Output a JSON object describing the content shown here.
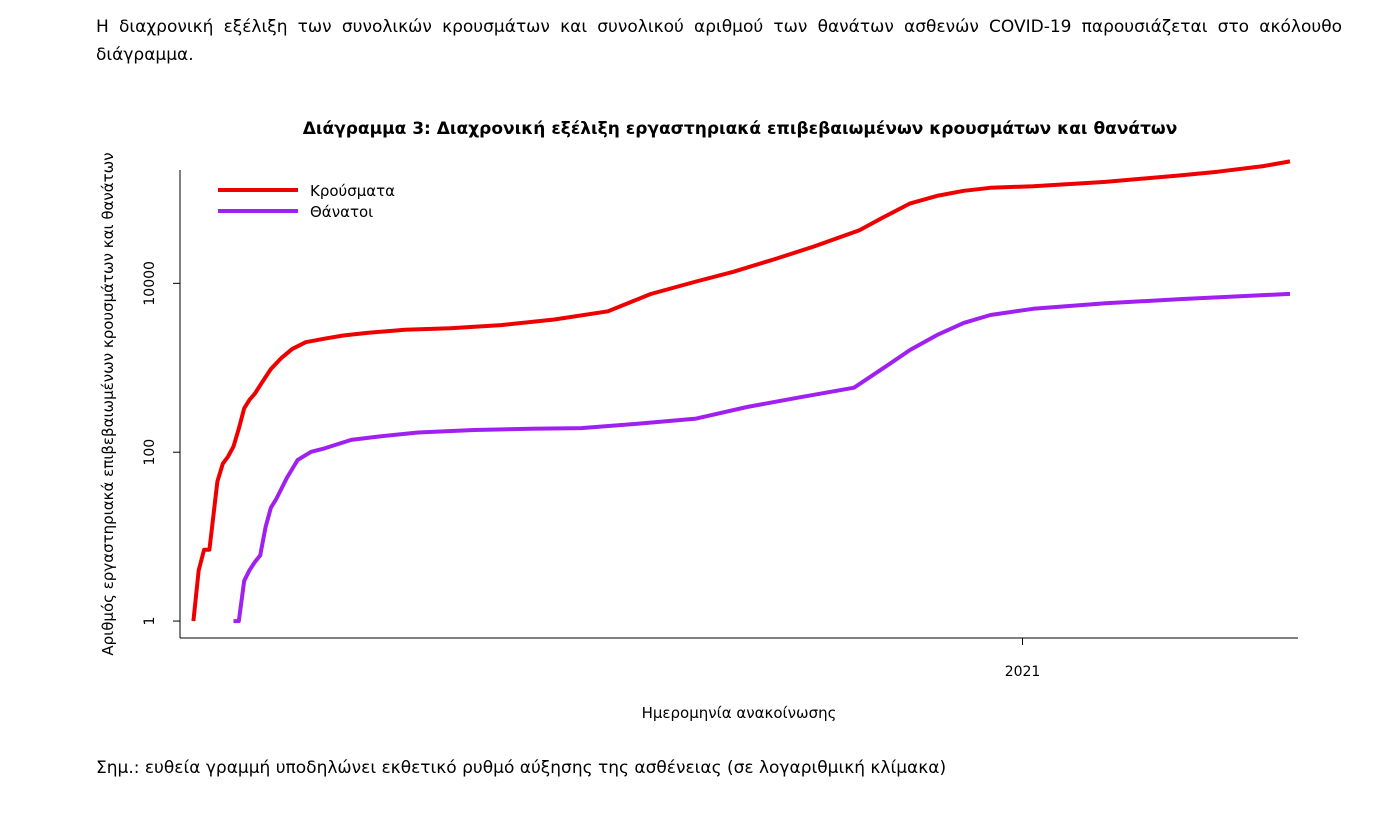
{
  "intro_text": "Η διαχρονική εξέλιξη των συνολικών κρουσμάτων και συνολικού αριθμού των θανάτων ασθενών COVID-19 παρουσιάζεται στο ακόλουθο διάγραμμα.",
  "note_text": "Σημ.: ευθεία γραμμή υποδηλώνει εκθετικό ρυθμό αύξησης της ασθένειας (σε λογαριθμική κλίμακα)",
  "chart_data": {
    "type": "line",
    "title": "Διάγραμμα 3: Διαχρονική εξέλιξη εργαστηριακά επιβεβαιωμένων κρουσμάτων και θανάτων",
    "xlabel": "Ημερομηνία ανακοίνωσης",
    "ylabel": "Αριθμός εργαστηριακά επιβεβαιωμένων κρουσμάτων και θανάτων",
    "y_scale": "log",
    "yticks": [
      1,
      100,
      10000
    ],
    "ytick_labels": [
      "1",
      "100",
      "10000"
    ],
    "xticks": [
      "2021-01-01"
    ],
    "xtick_labels": [
      "2021"
    ],
    "xlim": [
      "2020-02-21",
      "2021-04-14"
    ],
    "ylim": [
      0.63,
      220000
    ],
    "legend_position": "top-left",
    "grid": false,
    "series": [
      {
        "name": "Κρούσματα",
        "color": "#ee0000",
        "x": [
          "2020-02-26",
          "2020-02-28",
          "2020-03-01",
          "2020-03-03",
          "2020-03-06",
          "2020-03-08",
          "2020-03-10",
          "2020-03-12",
          "2020-03-14",
          "2020-03-16",
          "2020-03-18",
          "2020-03-20",
          "2020-03-23",
          "2020-03-26",
          "2020-03-30",
          "2020-04-03",
          "2020-04-08",
          "2020-04-15",
          "2020-04-22",
          "2020-05-01",
          "2020-05-15",
          "2020-06-01",
          "2020-06-20",
          "2020-07-10",
          "2020-07-30",
          "2020-08-15",
          "2020-09-01",
          "2020-09-15",
          "2020-10-01",
          "2020-10-15",
          "2020-11-01",
          "2020-11-10",
          "2020-11-20",
          "2020-11-30",
          "2020-12-10",
          "2020-12-20",
          "2021-01-05",
          "2021-02-01",
          "2021-03-01",
          "2021-03-15",
          "2021-04-01",
          "2021-04-11"
        ],
        "values": [
          1,
          4,
          7,
          7,
          45,
          73,
          89,
          117,
          190,
          331,
          418,
          495,
          695,
          966,
          1314,
          1673,
          2011,
          2207,
          2408,
          2591,
          2819,
          2937,
          3203,
          3732,
          4662,
          7472,
          10524,
          13730,
          19613,
          27334,
          42550,
          60570,
          88510,
          108640,
          124802,
          135456,
          141453,
          159000,
          190000,
          210000,
          245000,
          278000
        ]
      },
      {
        "name": "Θάνατοι",
        "color": "#a020f0",
        "x": [
          "2020-03-12",
          "2020-03-14",
          "2020-03-16",
          "2020-03-18",
          "2020-03-20",
          "2020-03-22",
          "2020-03-24",
          "2020-03-26",
          "2020-03-28",
          "2020-04-01",
          "2020-04-05",
          "2020-04-10",
          "2020-04-15",
          "2020-04-25",
          "2020-05-05",
          "2020-05-20",
          "2020-06-10",
          "2020-07-01",
          "2020-07-20",
          "2020-08-10",
          "2020-09-01",
          "2020-09-20",
          "2020-10-10",
          "2020-10-30",
          "2020-11-10",
          "2020-11-20",
          "2020-11-30",
          "2020-12-10",
          "2020-12-20",
          "2021-01-05",
          "2021-02-01",
          "2021-03-01",
          "2021-04-11"
        ],
        "values": [
          1,
          1,
          3,
          4,
          5,
          6,
          13,
          22,
          28,
          50,
          81,
          101,
          111,
          140,
          153,
          171,
          183,
          190,
          193,
          217,
          250,
          343,
          448,
          580,
          990,
          1630,
          2440,
          3400,
          4220,
          5000,
          5800,
          6500,
          7500
        ]
      }
    ]
  }
}
